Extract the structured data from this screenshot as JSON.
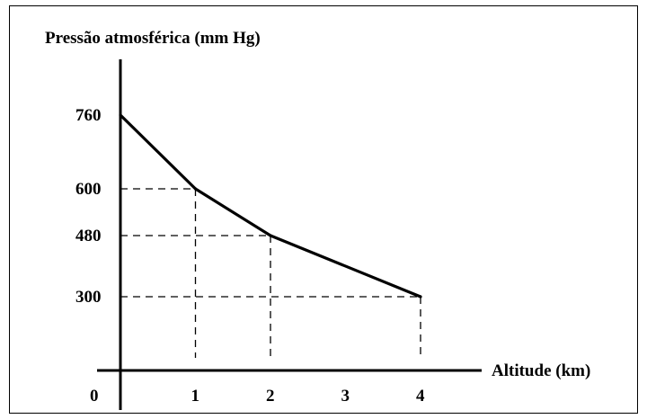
{
  "chart_data": {
    "type": "line",
    "ylabel": "Pressão atmosférica (mm Hg)",
    "xlabel": "Altitude (km)",
    "x_ticks": [
      "0",
      "1",
      "2",
      "3",
      "4"
    ],
    "y_ticks": [
      "760",
      "600",
      "480",
      "300"
    ],
    "x": [
      0,
      1,
      2,
      4
    ],
    "y": [
      760,
      600,
      480,
      300
    ],
    "xlim": [
      0,
      4.8
    ],
    "guide_points": [
      [
        1,
        600
      ],
      [
        2,
        480
      ],
      [
        4,
        300
      ]
    ],
    "grid": false,
    "line_color": "#000000",
    "guide_style": "dashed"
  }
}
